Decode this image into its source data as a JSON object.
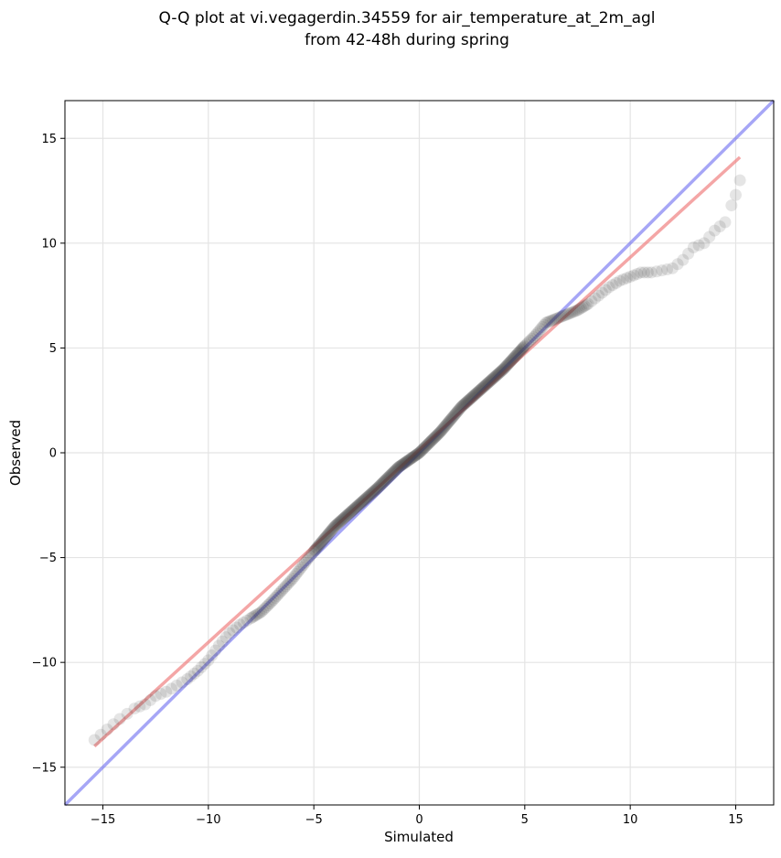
{
  "chart_data": {
    "type": "scatter",
    "title_line1": "Q-Q plot at vi.vegagerdin.34559 for air_temperature_at_2m_agl",
    "title_line2": "from 42-48h during spring",
    "xlabel": "Simulated",
    "ylabel": "Observed",
    "xlim": [
      -16.8,
      16.8
    ],
    "ylim": [
      -16.8,
      16.8
    ],
    "xticks": [
      -15,
      -10,
      -5,
      0,
      5,
      10,
      15
    ],
    "yticks": [
      -15,
      -10,
      -5,
      0,
      5,
      10,
      15
    ],
    "tick_labels": [
      "−15",
      "−10",
      "−5",
      "0",
      "5",
      "10",
      "15"
    ],
    "grid": true,
    "colors": {
      "points": "#333333",
      "identity_line": "#6b6bf0",
      "fit_line": "#f08080"
    },
    "identity_line": {
      "x": [
        -16.8,
        16.8
      ],
      "y": [
        -16.8,
        16.8
      ]
    },
    "fit_line": {
      "x": [
        -15.4,
        15.2
      ],
      "y": [
        -14.0,
        14.1
      ]
    },
    "quantile_anchors": {
      "x": [
        -15.4,
        -14.2,
        -13.5,
        -13.0,
        -12.5,
        -12.0,
        -11.5,
        -11.0,
        -10.5,
        -10.0,
        -9.5,
        -9.0,
        -8.5,
        -8.0,
        -7.5,
        -7.0,
        -6.0,
        -5.0,
        -4.0,
        -3.0,
        -2.0,
        -1.0,
        0.0,
        1.0,
        2.0,
        3.0,
        4.0,
        5.0,
        5.5,
        6.0,
        6.5,
        7.0,
        7.5,
        8.0,
        8.5,
        9.0,
        9.5,
        10.0,
        10.5,
        11.0,
        11.5,
        12.0,
        12.5,
        13.0,
        13.5,
        14.0,
        14.5,
        14.8,
        15.0,
        15.2
      ],
      "y": [
        -13.7,
        -12.7,
        -12.2,
        -12.0,
        -11.6,
        -11.4,
        -11.1,
        -10.8,
        -10.4,
        -9.9,
        -9.2,
        -8.6,
        -8.2,
        -7.9,
        -7.6,
        -7.1,
        -6.0,
        -4.7,
        -3.5,
        -2.6,
        -1.7,
        -0.7,
        0.0,
        1.0,
        2.2,
        3.1,
        4.0,
        5.1,
        5.6,
        6.2,
        6.4,
        6.6,
        6.8,
        7.1,
        7.5,
        7.9,
        8.2,
        8.4,
        8.6,
        8.6,
        8.7,
        8.8,
        9.2,
        9.8,
        10.0,
        10.6,
        11.0,
        11.8,
        12.3,
        13.0
      ]
    }
  }
}
